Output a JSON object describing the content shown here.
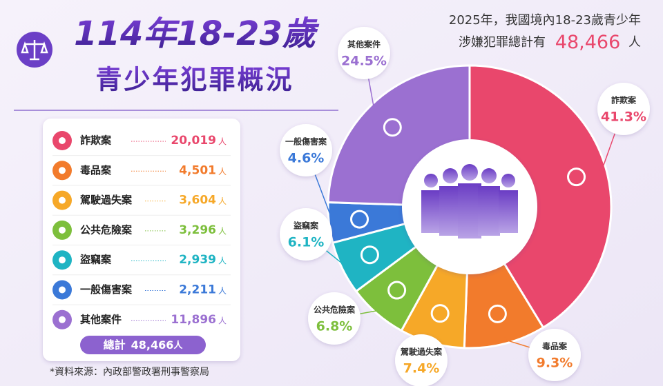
{
  "chart_data": {
    "type": "donut",
    "title": "114年18-23歲",
    "subtitle": "青少年犯罪概況",
    "categories": [
      "詐欺案",
      "毒品案",
      "駕駛過失案",
      "公共危險案",
      "盜竊案",
      "一般傷害案",
      "其他案件"
    ],
    "values": [
      41.3,
      9.3,
      7.4,
      6.8,
      6.1,
      4.6,
      24.5
    ],
    "value_labels": [
      "41.3%",
      "9.3%",
      "7.4%",
      "6.8%",
      "6.1%",
      "4.6%",
      "24.5%"
    ],
    "colors": [
      "#e9476c",
      "#f27b2c",
      "#f6a828",
      "#7dbf3c",
      "#1fb4c3",
      "#3b79d8",
      "#9b70d1"
    ]
  },
  "summary": {
    "line1": "2025年，我國境內18-23歲青少年",
    "line2": "涉嫌犯罪總計有",
    "total": "48,466",
    "unit": "人"
  },
  "table": {
    "rows": [
      {
        "name": "詐欺案",
        "count": "20,019",
        "unit": "人"
      },
      {
        "name": "毒品案",
        "count": "4,501",
        "unit": "人"
      },
      {
        "name": "駕駛過失案",
        "count": "3,604",
        "unit": "人"
      },
      {
        "name": "公共危險案",
        "count": "3,296",
        "unit": "人"
      },
      {
        "name": "盜竊案",
        "count": "2,939",
        "unit": "人"
      },
      {
        "name": "一般傷害案",
        "count": "2,211",
        "unit": "人"
      },
      {
        "name": "其他案件",
        "count": "11,896",
        "unit": "人"
      }
    ],
    "total_label": "總計",
    "total_value": "48,466",
    "total_unit": "人"
  },
  "source": "*資料來源：內政部警政署刑事警察局"
}
